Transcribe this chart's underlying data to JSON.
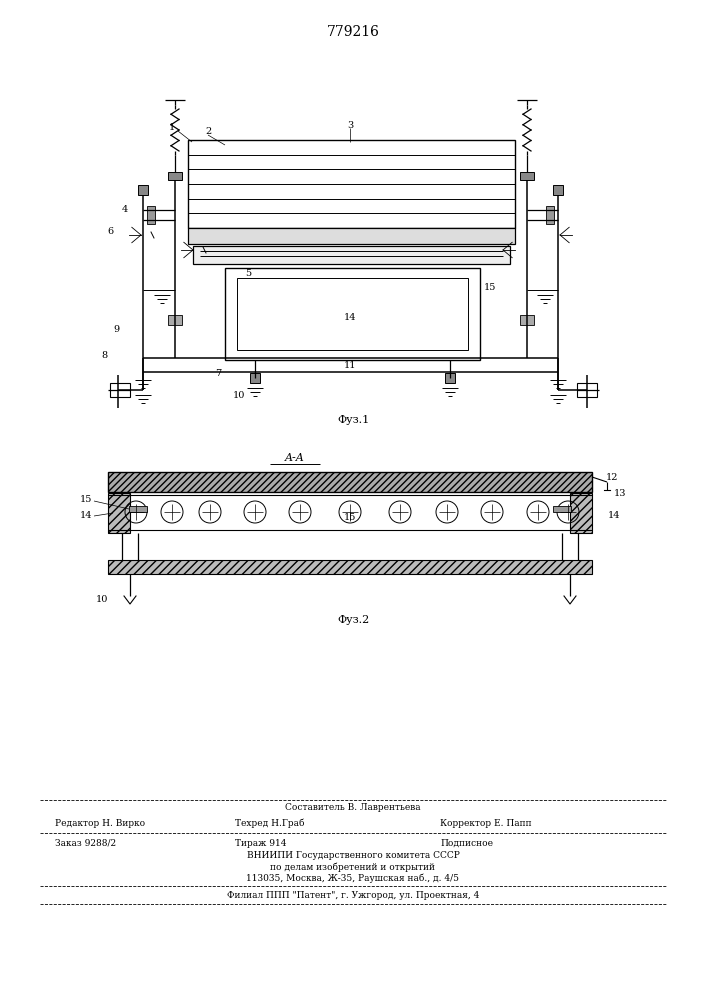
{
  "patent_number": "779216",
  "fig1_caption": "Φуз.1",
  "fig2_caption": "Φуз.2",
  "bg_color": "#ffffff",
  "line_color": "#000000",
  "footer_text": [
    [
      "center",
      353,
      808,
      "Составитель В. Лаврентьева"
    ],
    [
      "left",
      55,
      823,
      "Редактор Н. Вирко"
    ],
    [
      "left",
      235,
      823,
      "Техред Н.Граб"
    ],
    [
      "left",
      440,
      823,
      "Корректор Е. Папп"
    ],
    [
      "left",
      55,
      843,
      "Заказ 9288/2"
    ],
    [
      "left",
      235,
      843,
      "Тираж 914"
    ],
    [
      "left",
      440,
      843,
      "Подписное"
    ],
    [
      "center",
      353,
      856,
      "ВНИИПИ Государственного комитета СССР"
    ],
    [
      "center",
      353,
      867,
      "по делам изобретений и открытий"
    ],
    [
      "center",
      353,
      878,
      "113035, Москва, Ж-35, Раушская наб., д. 4/5"
    ],
    [
      "center",
      353,
      896,
      "Филиал ППП \"Патент\", г. Ужгород, ул. Проектная, 4"
    ]
  ]
}
